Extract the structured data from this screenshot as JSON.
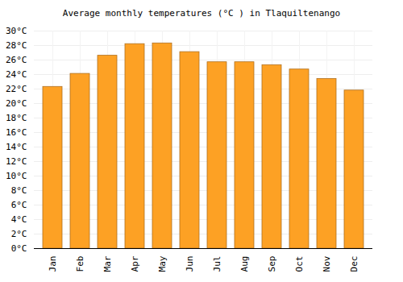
{
  "chart_data": {
    "type": "bar",
    "title": "Average monthly temperatures (°C ) in Tlaquiltenango",
    "categories": [
      "Jan",
      "Feb",
      "Mar",
      "Apr",
      "May",
      "Jun",
      "Jul",
      "Aug",
      "Sep",
      "Oct",
      "Nov",
      "Dec"
    ],
    "values": [
      22.3,
      24.1,
      26.6,
      28.2,
      28.3,
      27.1,
      25.7,
      25.7,
      25.3,
      24.7,
      23.4,
      21.8
    ],
    "color": "#fda124",
    "ylim": [
      0,
      30
    ],
    "yticks": [
      {
        "value": 0,
        "label": "0°C"
      },
      {
        "value": 2,
        "label": "2°C"
      },
      {
        "value": 4,
        "label": "4°C"
      },
      {
        "value": 6,
        "label": "6°C"
      },
      {
        "value": 8,
        "label": "8°C"
      },
      {
        "value": 10,
        "label": "10°C"
      },
      {
        "value": 12,
        "label": "12°C"
      },
      {
        "value": 14,
        "label": "14°C"
      },
      {
        "value": 16,
        "label": "16°C"
      },
      {
        "value": 18,
        "label": "18°C"
      },
      {
        "value": 20,
        "label": "20°C"
      },
      {
        "value": 22,
        "label": "22°C"
      },
      {
        "value": 24,
        "label": "24°C"
      },
      {
        "value": 26,
        "label": "26°C"
      },
      {
        "value": 28,
        "label": "28°C"
      },
      {
        "value": 30,
        "label": "30°C"
      }
    ],
    "grid": true
  }
}
